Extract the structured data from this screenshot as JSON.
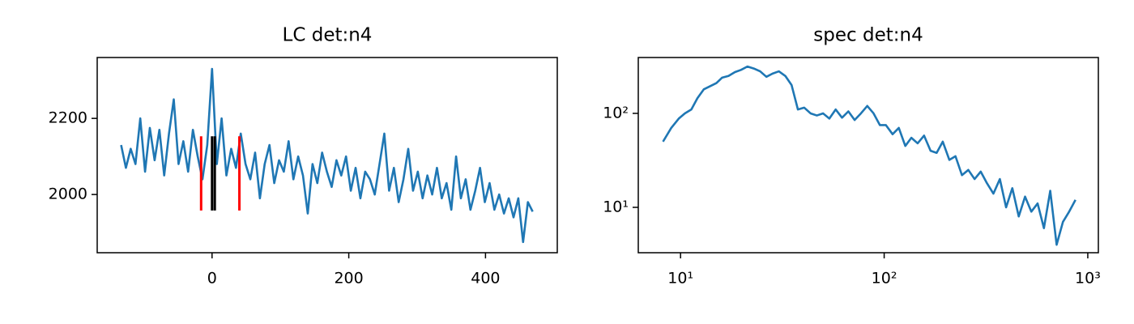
{
  "chart_data": [
    {
      "type": "line",
      "title": "LC det:n4",
      "x": [
        -133,
        -126,
        -119,
        -112,
        -105,
        -98,
        -91,
        -84,
        -77,
        -70,
        -63,
        -56,
        -49,
        -42,
        -35,
        -28,
        -21,
        -14,
        -7,
        0,
        7,
        14,
        21,
        28,
        35,
        42,
        49,
        56,
        63,
        70,
        77,
        84,
        91,
        98,
        105,
        112,
        119,
        126,
        133,
        140,
        147,
        154,
        161,
        168,
        175,
        182,
        189,
        196,
        203,
        210,
        217,
        224,
        231,
        238,
        245,
        252,
        259,
        266,
        273,
        280,
        287,
        294,
        301,
        308,
        315,
        322,
        329,
        336,
        343,
        350,
        357,
        364,
        371,
        378,
        385,
        392,
        399,
        406,
        413,
        420,
        427,
        434,
        441,
        448,
        455,
        462,
        469
      ],
      "series": [
        {
          "color": "#1f77b4",
          "values": [
            2130,
            2070,
            2120,
            2080,
            2200,
            2060,
            2175,
            2090,
            2170,
            2050,
            2160,
            2250,
            2080,
            2140,
            2060,
            2170,
            2100,
            2040,
            2130,
            2330,
            2080,
            2200,
            2050,
            2120,
            2070,
            2160,
            2080,
            2040,
            2110,
            1990,
            2080,
            2130,
            2030,
            2090,
            2060,
            2140,
            2040,
            2100,
            2050,
            1950,
            2080,
            2030,
            2110,
            2060,
            2020,
            2090,
            2050,
            2100,
            2010,
            2070,
            1990,
            2060,
            2040,
            2000,
            2080,
            2160,
            2010,
            2070,
            1980,
            2040,
            2120,
            2010,
            2060,
            1990,
            2050,
            2000,
            2070,
            1990,
            2030,
            1960,
            2100,
            1990,
            2040,
            1960,
            2010,
            2070,
            1980,
            2030,
            1960,
            2000,
            1950,
            1990,
            1940,
            1990,
            1875,
            1980,
            1955
          ]
        }
      ],
      "vlines": {
        "x": [
          -16,
          0,
          4,
          40
        ],
        "colors": [
          "#ff0000",
          "#000000",
          "#000000",
          "#ff0000"
        ],
        "ymin": 1958,
        "ymax": 2153
      },
      "xlim": [
        -168,
        505
      ],
      "ylim": [
        1847,
        2360
      ],
      "xticks": [
        0,
        200,
        400
      ],
      "yticks": [
        2000,
        2200
      ]
    },
    {
      "type": "line",
      "title": "spec det:n4",
      "xscale": "log",
      "yscale": "log",
      "x": [
        8.2,
        9,
        9.8,
        10.5,
        11.3,
        12.1,
        13,
        14,
        15,
        16,
        17.2,
        18.5,
        19.8,
        21.3,
        22.9,
        24.6,
        26.4,
        28.3,
        30.4,
        32.7,
        35.1,
        37.7,
        40.5,
        43.5,
        46.7,
        50.1,
        53.8,
        57.8,
        62.1,
        66.7,
        71.6,
        76.9,
        82.6,
        88.7,
        95.3,
        102,
        110,
        118,
        127,
        136,
        146,
        157,
        169,
        181,
        194,
        209,
        224,
        241,
        259,
        278,
        298,
        320,
        344,
        370,
        397,
        426,
        458,
        492,
        528,
        567,
        609,
        654,
        703,
        755,
        810,
        870
      ],
      "series": [
        {
          "color": "#1f77b4",
          "values": [
            50,
            70,
            88,
            100,
            110,
            145,
            180,
            195,
            210,
            240,
            250,
            275,
            290,
            315,
            300,
            280,
            245,
            265,
            280,
            250,
            200,
            110,
            115,
            100,
            95,
            100,
            88,
            110,
            90,
            105,
            85,
            100,
            120,
            100,
            75,
            75,
            60,
            70,
            45,
            55,
            48,
            58,
            40,
            38,
            50,
            32,
            35,
            22,
            25,
            20,
            24,
            18,
            14,
            20,
            10,
            16,
            8,
            13,
            9,
            11,
            6,
            15,
            4,
            7,
            9,
            12
          ]
        }
      ],
      "xlim": [
        6.2,
        1127
      ],
      "ylim": [
        3.29,
        393
      ],
      "xticks": [
        {
          "value": 10,
          "label": "10¹"
        },
        {
          "value": 100,
          "label": "10²"
        },
        {
          "value": 1000,
          "label": "10³"
        }
      ],
      "yticks": [
        {
          "value": 10,
          "label": "10¹"
        },
        {
          "value": 100,
          "label": "10²"
        }
      ]
    }
  ]
}
